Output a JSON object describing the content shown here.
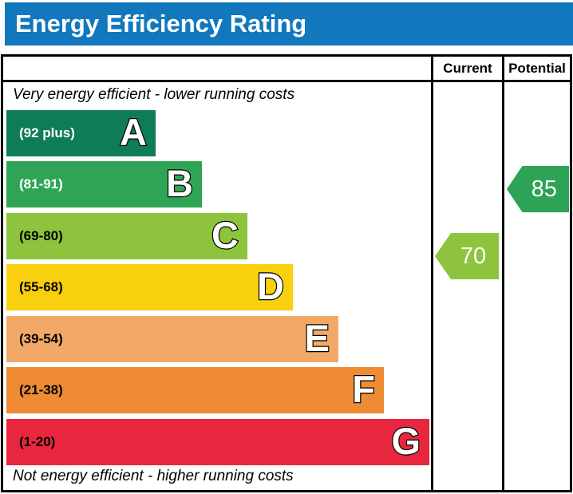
{
  "header": {
    "title": "Energy Efficiency Rating",
    "color": "#1178be"
  },
  "table": {
    "columns": {
      "current": "Current",
      "potential": "Potential"
    },
    "top_caption": "Very energy efficient - lower running costs",
    "bottom_caption": "Not energy efficient - higher running costs"
  },
  "chart_data": {
    "type": "bar",
    "title": "Energy Efficiency Rating",
    "top_caption": "Very energy efficient - lower running costs",
    "bottom_caption": "Not energy efficient - higher running costs",
    "columns": [
      "Current",
      "Potential"
    ],
    "header_color": "#1178be",
    "bands": [
      {
        "letter": "A",
        "range_label": "(92 plus)",
        "min": 92,
        "max": 100,
        "color": "#0e7d55",
        "text_color": "#ffffff"
      },
      {
        "letter": "B",
        "range_label": "(81-91)",
        "min": 81,
        "max": 91,
        "color": "#30a455",
        "text_color": "#ffffff"
      },
      {
        "letter": "C",
        "range_label": "(69-80)",
        "min": 69,
        "max": 80,
        "color": "#8ec43d",
        "text_color": "#000000"
      },
      {
        "letter": "D",
        "range_label": "(55-68)",
        "min": 55,
        "max": 68,
        "color": "#f8d00d",
        "text_color": "#000000"
      },
      {
        "letter": "E",
        "range_label": "(39-54)",
        "min": 39,
        "max": 54,
        "color": "#f2a967",
        "text_color": "#000000"
      },
      {
        "letter": "F",
        "range_label": "(21-38)",
        "min": 21,
        "max": 38,
        "color": "#ee8b33",
        "text_color": "#000000"
      },
      {
        "letter": "G",
        "range_label": "(1-20)",
        "min": 1,
        "max": 20,
        "color": "#e8273f",
        "text_color": "#000000"
      }
    ],
    "current": {
      "value": 70,
      "band": "C",
      "color": "#8ec43d"
    },
    "potential": {
      "value": 85,
      "band": "B",
      "color": "#2da355"
    }
  }
}
